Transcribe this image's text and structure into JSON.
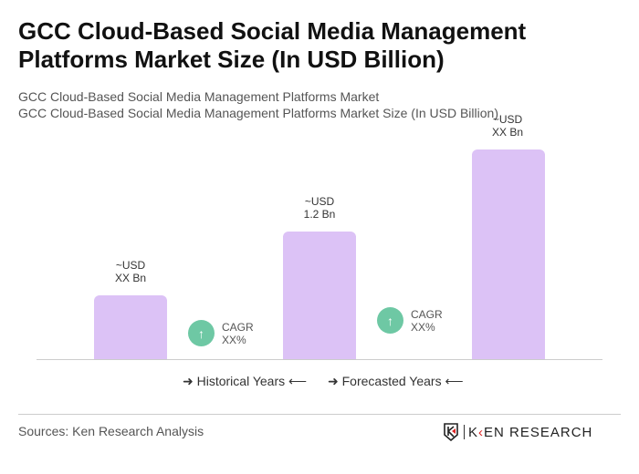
{
  "title": "GCC Cloud-Based Social Media Management Platforms Market Size (In USD Billion)",
  "subtitle1": "GCC Cloud-Based Social Media Management Platforms Market",
  "subtitle2": "GCC Cloud-Based Social Media Management Platforms Market Size (In USD Billion)",
  "chart_data": {
    "type": "bar",
    "categories": [
      "",
      "",
      ""
    ],
    "values": [
      null,
      1.2,
      null
    ],
    "data_labels": [
      {
        "l1": "~USD",
        "l2": "XX Bn"
      },
      {
        "l1": "~USD",
        "l2": "1.2 Bn"
      },
      {
        "l1": "~USD",
        "l2": "XX Bn"
      }
    ],
    "cagr": [
      {
        "l1": "CAGR",
        "l2": "XX%"
      },
      {
        "l1": "CAGR",
        "l2": "XX%"
      }
    ],
    "legend": [
      "Historical Years",
      "Forecasted Years"
    ],
    "bar_color": "#dcc2f6",
    "cagr_color": "#6ec8a4"
  },
  "footer": {
    "sources": "Sources: Ken Research Analysis",
    "logo": "KEN RESEARCH"
  }
}
